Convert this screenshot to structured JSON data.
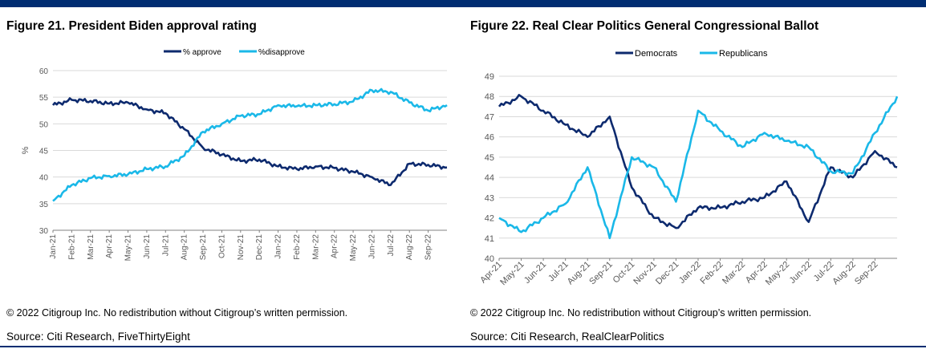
{
  "colors": {
    "rule": "#002d72",
    "dark": "#0d2a6e",
    "light": "#1ab8e8",
    "grid": "#d9d9d9",
    "axis": "#595959"
  },
  "figures": [
    {
      "title": "Figure 21. President Biden approval rating",
      "copyright": "© 2022 Citigroup Inc. No redistribution without Citigroup’s written permission.",
      "source": "Source: Citi Research, FiveThirtyEight"
    },
    {
      "title": "Figure 22. Real Clear Politics General Congressional Ballot",
      "copyright": "© 2022 Citigroup Inc. No redistribution without Citigroup’s written permission.",
      "source": "Source: Citi Research, RealClearPolitics"
    }
  ],
  "chart_data": [
    {
      "type": "line",
      "title": "",
      "ylabel": "%",
      "xlabel": "",
      "ylim": [
        30,
        60
      ],
      "yticks": [
        30,
        35,
        40,
        45,
        50,
        55,
        60
      ],
      "grid": true,
      "legend": "top-center",
      "x_tick_labels": [
        "Jan-21",
        "Feb-21",
        "Mar-21",
        "Apr-21",
        "May-21",
        "Jun-21",
        "Jul-21",
        "Aug-21",
        "Sep-21",
        "Oct-21",
        "Nov-21",
        "Dec-21",
        "Jan-22",
        "Feb-22",
        "Mar-22",
        "Apr-22",
        "May-22",
        "Jun-22",
        "Jul-22",
        "Aug-22",
        "Sep-22"
      ],
      "x": [
        "Jan-21",
        "Feb-21",
        "Mar-21",
        "Apr-21",
        "May-21",
        "Jun-21",
        "Jul-21",
        "Aug-21",
        "Sep-21",
        "Oct-21",
        "Nov-21",
        "Dec-21",
        "Jan-22",
        "Feb-22",
        "Mar-22",
        "Apr-22",
        "May-22",
        "Jun-22",
        "Jul-22",
        "Aug-22",
        "Sep-22",
        "End-Sep-22"
      ],
      "series": [
        {
          "name": "% approve",
          "color": "#0d2a6e",
          "values": [
            53.5,
            54.5,
            54.3,
            53.8,
            54.0,
            52.7,
            52.0,
            49.0,
            45.5,
            44.2,
            43.0,
            43.3,
            42.0,
            41.5,
            42.0,
            41.7,
            41.0,
            40.0,
            38.5,
            42.5,
            42.3,
            41.8
          ]
        },
        {
          "name": "%disapprove",
          "color": "#1ab8e8",
          "values": [
            35.5,
            38.5,
            39.8,
            40.2,
            40.5,
            41.5,
            42.0,
            44.0,
            48.5,
            50.0,
            51.5,
            51.8,
            53.5,
            53.3,
            53.5,
            53.7,
            54.2,
            56.3,
            56.0,
            54.0,
            52.5,
            53.5
          ]
        }
      ]
    },
    {
      "type": "line",
      "title": "",
      "ylabel": "",
      "xlabel": "",
      "ylim": [
        40,
        49
      ],
      "yticks": [
        40,
        41,
        42,
        43,
        44,
        45,
        46,
        47,
        48,
        49
      ],
      "grid": true,
      "legend": "top-center",
      "x_tick_labels": [
        "Apr-21",
        "May-21",
        "Jun-21",
        "Jul-21",
        "Aug-21",
        "Sep-21",
        "Oct-21",
        "Nov-21",
        "Dec-21",
        "Jan-22",
        "Feb-22",
        "Mar-22",
        "Apr-22",
        "May-22",
        "Jun-22",
        "Jul-22",
        "Aug-22",
        "Sep-22"
      ],
      "x": [
        "Apr-21",
        "May-21",
        "Jun-21",
        "Jul-21",
        "Aug-21",
        "Sep-21",
        "Oct-21",
        "Nov-21",
        "Dec-21",
        "Jan-22",
        "Feb-22",
        "Mar-22",
        "Apr-22",
        "May-22",
        "Jun-22",
        "Jul-22",
        "Aug-22",
        "Sep-22",
        "End-Sep-22"
      ],
      "series": [
        {
          "name": "Democrats",
          "color": "#0d2a6e",
          "values": [
            47.5,
            48.0,
            47.3,
            46.6,
            46.0,
            47.0,
            43.5,
            42.0,
            41.5,
            42.5,
            42.5,
            42.8,
            43.0,
            43.8,
            41.8,
            44.5,
            44.0,
            45.3,
            44.5
          ]
        },
        {
          "name": "Republicans",
          "color": "#1ab8e8",
          "values": [
            42.0,
            41.3,
            42.0,
            42.7,
            44.5,
            41.0,
            45.0,
            44.5,
            42.8,
            47.3,
            46.3,
            45.5,
            46.2,
            45.8,
            45.5,
            44.3,
            44.2,
            46.2,
            48.0
          ]
        }
      ]
    }
  ]
}
